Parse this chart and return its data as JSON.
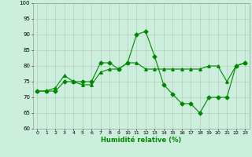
{
  "xlabel": "Humidité relative (%)",
  "background_color": "#cceedd",
  "grid_color": "#bbccbb",
  "line_color": "#008800",
  "xlim": [
    -0.5,
    23.5
  ],
  "ylim": [
    60,
    100
  ],
  "yticks": [
    60,
    65,
    70,
    75,
    80,
    85,
    90,
    95,
    100
  ],
  "xticks": [
    0,
    1,
    2,
    3,
    4,
    5,
    6,
    7,
    8,
    9,
    10,
    11,
    12,
    13,
    14,
    15,
    16,
    17,
    18,
    19,
    20,
    21,
    22,
    23
  ],
  "series1_x": [
    0,
    1,
    2,
    3,
    4,
    5,
    6,
    7,
    8,
    9,
    10,
    11,
    12,
    13,
    14,
    15,
    16,
    17,
    18,
    19,
    20,
    21,
    22,
    23
  ],
  "series1_y": [
    72,
    72,
    72,
    75,
    75,
    75,
    75,
    81,
    81,
    79,
    81,
    90,
    91,
    83,
    74,
    71,
    68,
    68,
    65,
    70,
    70,
    70,
    80,
    81
  ],
  "series2_x": [
    0,
    1,
    2,
    3,
    4,
    5,
    6,
    7,
    8,
    9,
    10,
    11,
    12,
    13,
    14,
    15,
    16,
    17,
    18,
    19,
    20,
    21,
    22,
    23
  ],
  "series2_y": [
    72,
    72,
    73,
    77,
    75,
    74,
    74,
    78,
    79,
    79,
    81,
    81,
    79,
    79,
    79,
    79,
    79,
    79,
    79,
    80,
    80,
    75,
    80,
    81
  ]
}
